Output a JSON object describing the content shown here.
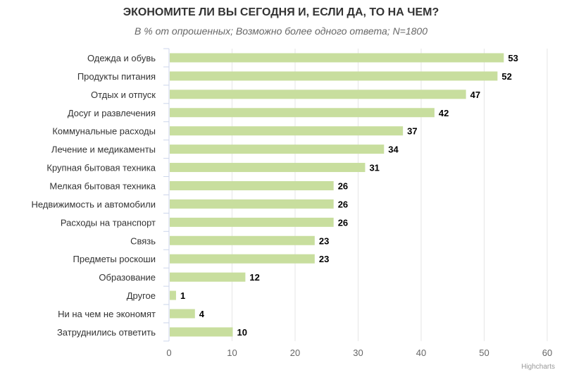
{
  "chart_data": {
    "type": "bar",
    "orientation": "horizontal",
    "title": "ЭКОНОМИТЕ ЛИ ВЫ СЕГОДНЯ И, ЕСЛИ ДА, ТО НА ЧЕМ?",
    "subtitle": "В % от опрошенных; Возможно более одного ответа; N=1800",
    "categories": [
      "Одежда и обувь",
      "Продукты питания",
      "Отдых и отпуск",
      "Досуг и развлечения",
      "Коммунальные расходы",
      "Лечение и медикаменты",
      "Крупная бытовая техника",
      "Мелкая бытовая техника",
      "Недвижимость и автомобили",
      "Расходы на транспорт",
      "Связь",
      "Предметы роскоши",
      "Образование",
      "Другое",
      "Ни на чем не экономят",
      "Затруднились ответить"
    ],
    "values": [
      53,
      52,
      47,
      42,
      37,
      34,
      31,
      26,
      26,
      26,
      23,
      23,
      12,
      1,
      4,
      10
    ],
    "xlim": [
      0,
      60
    ],
    "xticks": [
      0,
      10,
      20,
      30,
      40,
      50,
      60
    ],
    "grid": true,
    "legend": "none",
    "bar_color": "#c8de9e",
    "credit": "Highcharts"
  }
}
